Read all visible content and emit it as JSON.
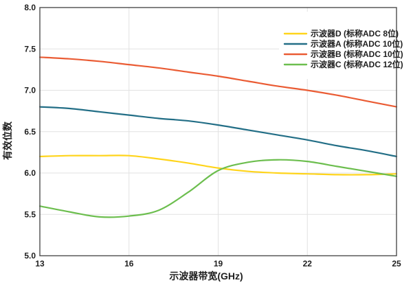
{
  "chart_data": {
    "type": "line",
    "title": "",
    "xlabel": "示波器带宽(GHz)",
    "ylabel": "有效位数",
    "xlim": [
      13,
      25
    ],
    "ylim": [
      5.0,
      8.0
    ],
    "x_ticks": [
      13,
      16,
      19,
      22,
      25
    ],
    "y_ticks": [
      5.0,
      5.5,
      6.0,
      6.5,
      7.0,
      7.5,
      8.0
    ],
    "grid": true,
    "legend_position": "top-right",
    "x": [
      13,
      14,
      15,
      16,
      17,
      18,
      19,
      20,
      21,
      22,
      23,
      24,
      25
    ],
    "series": [
      {
        "name": "示波器D (标称ADC 8位)",
        "color": "#FFD41A",
        "values": [
          6.2,
          6.21,
          6.21,
          6.21,
          6.17,
          6.12,
          6.06,
          6.02,
          6.0,
          5.99,
          5.98,
          5.98,
          5.99
        ]
      },
      {
        "name": "示波器A (标称ADC 10位)",
        "color": "#226E86",
        "values": [
          6.8,
          6.78,
          6.74,
          6.7,
          6.66,
          6.63,
          6.58,
          6.52,
          6.46,
          6.4,
          6.33,
          6.27,
          6.2
        ]
      },
      {
        "name": "示波器B (标称ADC 10位)",
        "color": "#EA5B33",
        "values": [
          7.4,
          7.38,
          7.35,
          7.31,
          7.27,
          7.22,
          7.17,
          7.11,
          7.05,
          7.0,
          6.94,
          6.87,
          6.8
        ]
      },
      {
        "name": "示波器C (标称ADC 12位)",
        "color": "#6CBE4E",
        "values": [
          5.6,
          5.53,
          5.47,
          5.48,
          5.55,
          5.77,
          6.03,
          6.13,
          6.16,
          6.14,
          6.08,
          6.02,
          5.96
        ]
      }
    ],
    "colors": {
      "grid": "#E2E2E2",
      "frame": "#4D4D4D",
      "text": "#1F1F1F"
    }
  }
}
